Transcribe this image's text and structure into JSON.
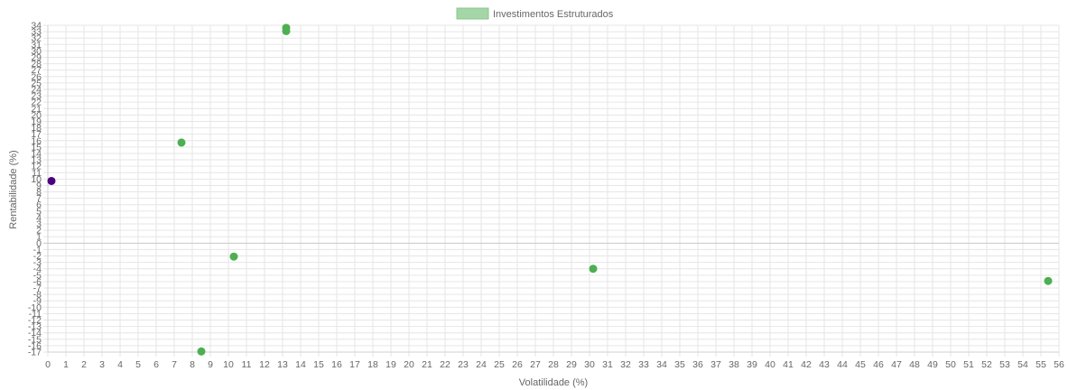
{
  "chart_data": {
    "type": "scatter",
    "title": "",
    "legend": {
      "label": "Investimentos Estruturados",
      "color": "#a5d6a7",
      "position": "top-center"
    },
    "xlabel": "Volatilidade (%)",
    "ylabel": "Rentabilidade (%)",
    "xlim": [
      0,
      56
    ],
    "ylim": [
      -17,
      34
    ],
    "grid": true,
    "series": [
      {
        "name": "Investimentos Estruturados",
        "color": "#4caf50",
        "points": [
          {
            "x": 13.2,
            "y": 33.6
          },
          {
            "x": 13.2,
            "y": 33.1
          },
          {
            "x": 7.4,
            "y": 15.7
          },
          {
            "x": 10.3,
            "y": -2.1
          },
          {
            "x": 8.5,
            "y": -16.9
          },
          {
            "x": 30.2,
            "y": -4.0
          },
          {
            "x": 55.4,
            "y": -5.9
          }
        ]
      },
      {
        "color": "#4b0082",
        "points": [
          {
            "x": 0.2,
            "y": 9.7
          }
        ]
      }
    ]
  }
}
